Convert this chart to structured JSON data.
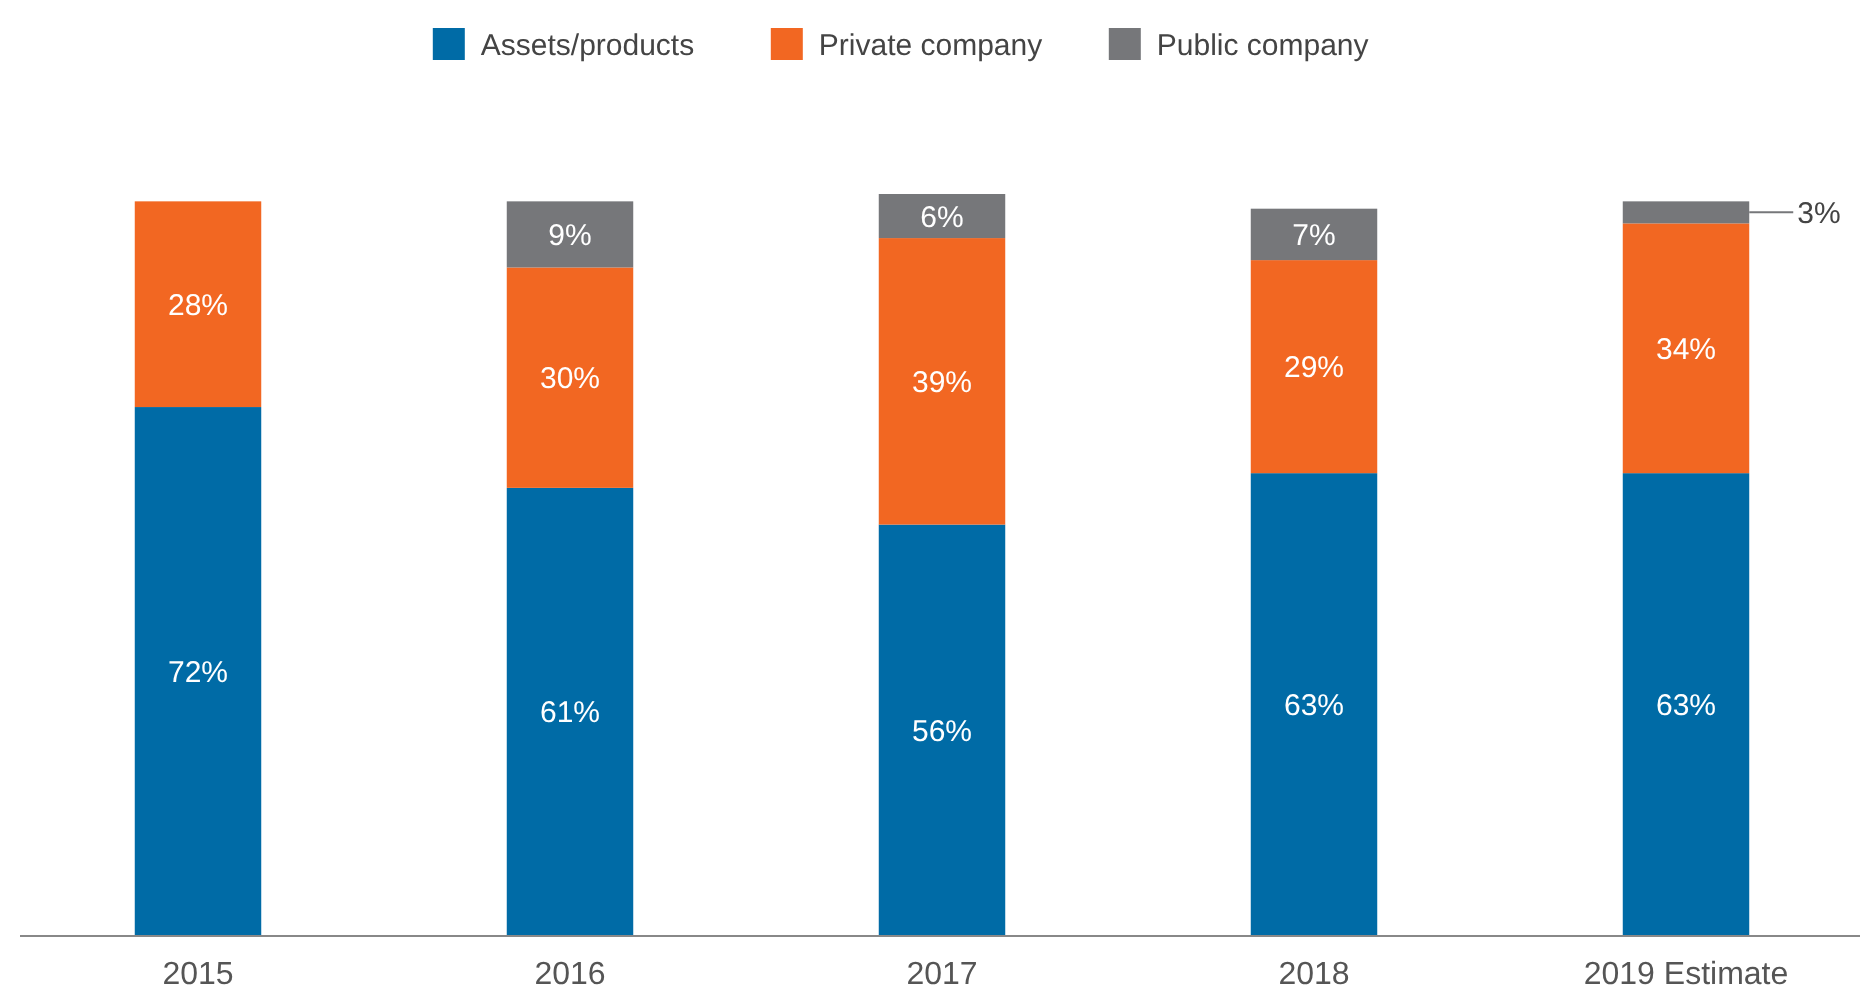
{
  "chart_data": {
    "type": "bar",
    "stacked": true,
    "categories": [
      "2015",
      "2016",
      "2017",
      "2018",
      "2019 Estimate"
    ],
    "series": [
      {
        "name": "Assets/products",
        "color": "#006ba6",
        "values": [
          72,
          61,
          56,
          63,
          63
        ],
        "value_labels": [
          "72%",
          "61%",
          "56%",
          "63%",
          "63%"
        ]
      },
      {
        "name": "Private company",
        "color": "#f26722",
        "values": [
          28,
          30,
          39,
          29,
          34
        ],
        "value_labels": [
          "28%",
          "30%",
          "39%",
          "29%",
          "34%"
        ]
      },
      {
        "name": "Public company",
        "color": "#76777a",
        "values": [
          null,
          9,
          6,
          7,
          3
        ],
        "value_labels": [
          null,
          "9%",
          "6%",
          "7%",
          "3%"
        ]
      }
    ],
    "ylim": [
      0,
      101
    ],
    "tick_labels": "x",
    "legend": "top"
  }
}
